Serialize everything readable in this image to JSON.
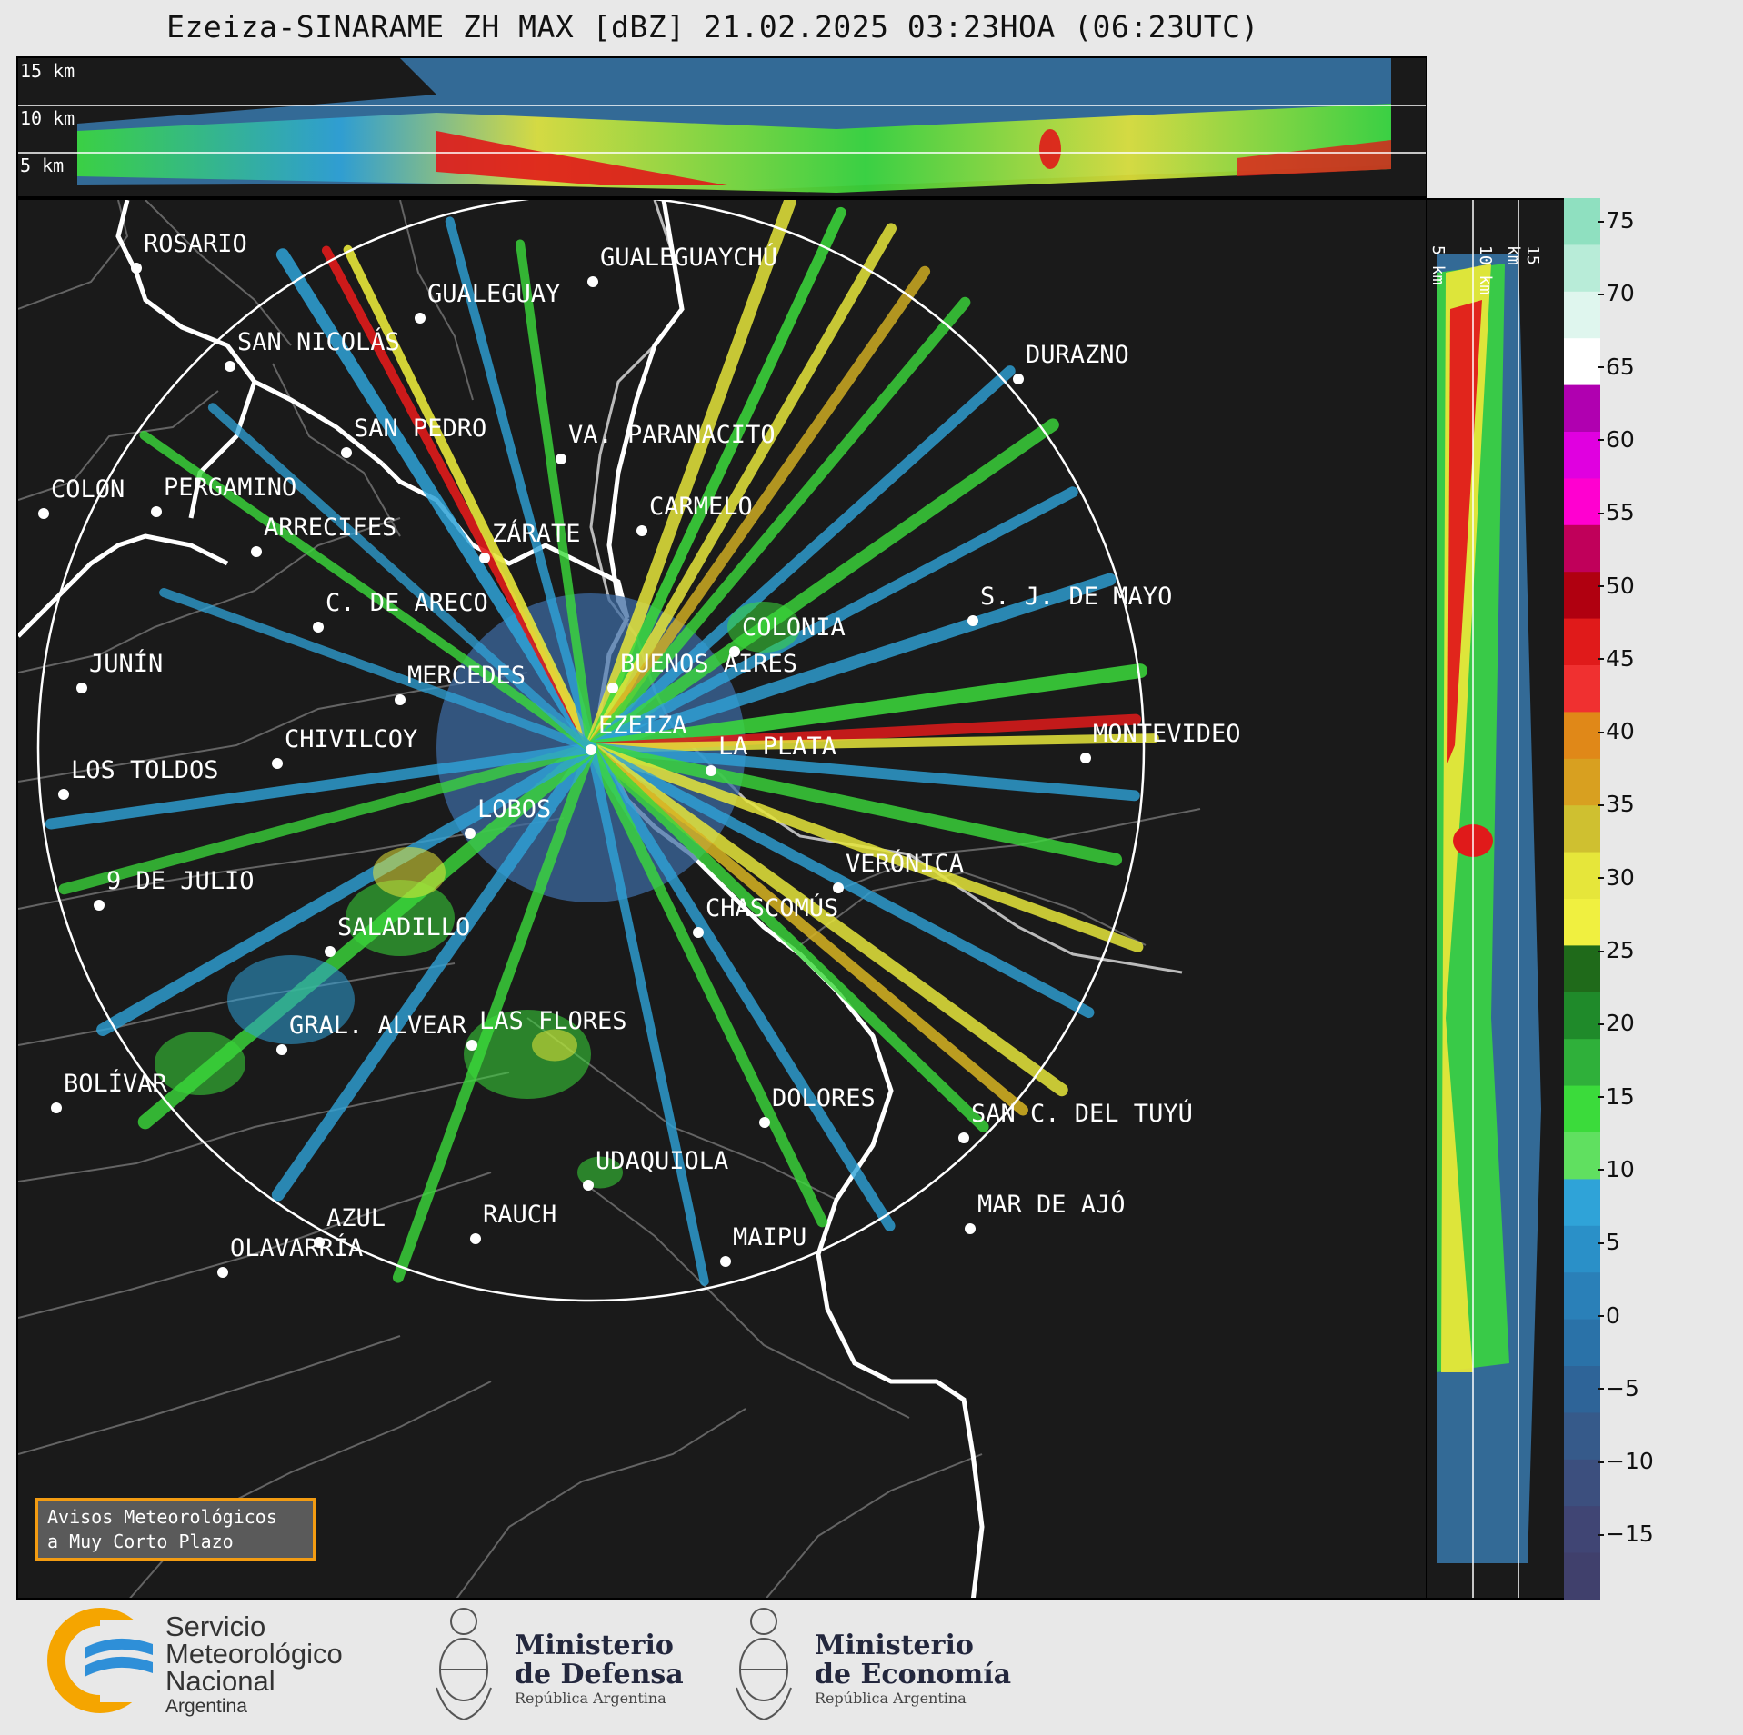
{
  "title": "Ezeiza-SINARAME ZH MAX [dBZ] 21.02.2025 03:23HOA (06:23UTC)",
  "top_panel": {
    "labels": [
      "15 km",
      "10 km",
      "5 km"
    ]
  },
  "right_panel": {
    "labels": [
      "5 km",
      "10 km",
      "15 km"
    ]
  },
  "cities": [
    {
      "name": "ROSARIO"
    },
    {
      "name": "GUALEGUAYCHÚ"
    },
    {
      "name": "GUALEGUAY"
    },
    {
      "name": "SAN NICOLÁS"
    },
    {
      "name": "DURAZNO"
    },
    {
      "name": "SAN PEDRO"
    },
    {
      "name": "VA. PARANACITO"
    },
    {
      "name": "COLON"
    },
    {
      "name": "PERGAMINO"
    },
    {
      "name": "CARMELO"
    },
    {
      "name": "ARRECIFES"
    },
    {
      "name": "ZÁRATE"
    },
    {
      "name": "S. J. DE MAYO"
    },
    {
      "name": "C. DE ARECO"
    },
    {
      "name": "COLONIA"
    },
    {
      "name": "JUNÍN"
    },
    {
      "name": "BUENOS AIRES"
    },
    {
      "name": "MERCEDES"
    },
    {
      "name": "EZEIZA"
    },
    {
      "name": "MONTEVIDEO"
    },
    {
      "name": "CHIVILCOY"
    },
    {
      "name": "LA PLATA"
    },
    {
      "name": "LOS TOLDOS"
    },
    {
      "name": "LOBOS"
    },
    {
      "name": "VERÓNICA"
    },
    {
      "name": "9 DE JULIO"
    },
    {
      "name": "CHASCOMÚS"
    },
    {
      "name": "SALADILLO"
    },
    {
      "name": "GRAL. ALVEAR"
    },
    {
      "name": "LAS FLORES"
    },
    {
      "name": "BOLÍVAR"
    },
    {
      "name": "DOLORES"
    },
    {
      "name": "SAN C. DEL TUYÚ"
    },
    {
      "name": "UDAQUIOLA"
    },
    {
      "name": "MAR DE AJÓ"
    },
    {
      "name": "AZUL"
    },
    {
      "name": "RAUCH"
    },
    {
      "name": "OLAVARRÍA"
    },
    {
      "name": "MAIPU"
    }
  ],
  "colorbar": {
    "ticks": [
      "75",
      "70",
      "65",
      "60",
      "55",
      "50",
      "45",
      "40",
      "35",
      "30",
      "25",
      "20",
      "15",
      "10",
      "5",
      "0",
      "−5",
      "−10",
      "−15"
    ],
    "colors": [
      "#3a3f6e",
      "#3f4a7a",
      "#3c578a",
      "#3a6898",
      "#3879ad",
      "#3a8cc3",
      "#2fa3d8",
      "#3bdb3b",
      "#1f9a2a",
      "#e6e63a",
      "#d8b422",
      "#e08818",
      "#e01a1a",
      "#b00010",
      "#c0005a",
      "#ff00d0",
      "#b000b0",
      "#ffffff",
      "#8fe0c0"
    ]
  },
  "warning_box": {
    "line1": "Avisos Meteorológicos",
    "line2": "a Muy Corto Plazo"
  },
  "footer": {
    "smn": {
      "line1": "Servicio",
      "line2": "Meteorológico",
      "line3": "Nacional",
      "line4": "Argentina"
    },
    "defensa": {
      "line1": "Ministerio",
      "line2": "de Defensa",
      "line3": "República Argentina"
    },
    "economia": {
      "line1": "Ministerio",
      "line2": "de Economía",
      "line3": "República Argentina"
    }
  }
}
